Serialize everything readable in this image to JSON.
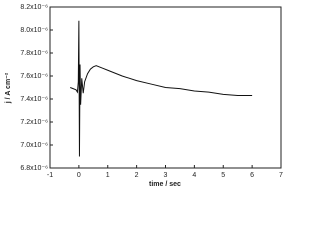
{
  "chart_data": {
    "type": "line",
    "xlabel": "time / sec",
    "ylabel": "j / A cm⁻²",
    "x": [
      -0.3,
      -0.2,
      -0.1,
      -0.05,
      -0.02,
      0,
      0.02,
      0.04,
      0.06,
      0.1,
      0.15,
      0.2,
      0.3,
      0.4,
      0.5,
      0.6,
      0.8,
      1,
      1.5,
      2,
      2.5,
      3,
      3.5,
      4,
      4.5,
      5,
      5.5,
      6
    ],
    "series": [
      {
        "color": "#111111",
        "values": [
          7.5e-06,
          7.49e-06,
          7.48e-06,
          7.46e-06,
          7.55e-06,
          8.08e-06,
          6.9e-06,
          7.7e-06,
          7.35e-06,
          7.58e-06,
          7.45e-06,
          7.55e-06,
          7.62e-06,
          7.66e-06,
          7.68e-06,
          7.69e-06,
          7.67e-06,
          7.65e-06,
          7.6e-06,
          7.56e-06,
          7.53e-06,
          7.5e-06,
          7.49e-06,
          7.47e-06,
          7.46e-06,
          7.44e-06,
          7.43e-06,
          7.43e-06
        ]
      }
    ],
    "xlim": [
      -1,
      7
    ],
    "xticks": [
      -1,
      0,
      1,
      2,
      3,
      4,
      5,
      6,
      7
    ],
    "ylim": [
      6.8e-06,
      8.2e-06
    ],
    "yticks": [
      {
        "value": 6.8e-06,
        "label": "6.8x10⁻⁶"
      },
      {
        "value": 7e-06,
        "label": "7.0x10⁻⁶"
      },
      {
        "value": 7.2e-06,
        "label": "7.2x10⁻⁶"
      },
      {
        "value": 7.4e-06,
        "label": "7.4x10⁻⁶"
      },
      {
        "value": 7.6e-06,
        "label": "7.6x10⁻⁶"
      },
      {
        "value": 7.8e-06,
        "label": "7.8x10⁻⁶"
      },
      {
        "value": 8e-06,
        "label": "8.0x10⁻⁶"
      },
      {
        "value": 8.2e-06,
        "label": "8.2x10⁻⁶"
      }
    ]
  }
}
